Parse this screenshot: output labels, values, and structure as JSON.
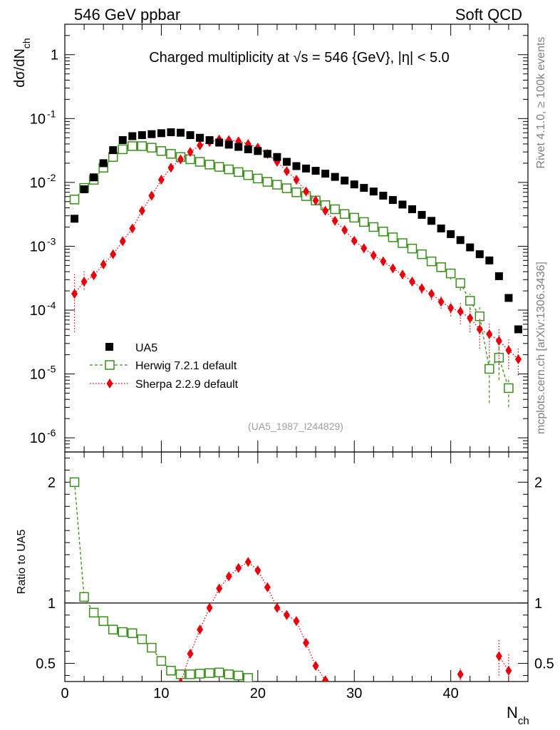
{
  "header": {
    "left": "546 GeV ppbar",
    "right": "Soft QCD"
  },
  "side": {
    "rivet": "Rivet 4.1.0, ≥ 100k events",
    "mcplots": "mcplots.cern.ch [arXiv:1306.3436]"
  },
  "colors": {
    "ua5": "#000000",
    "herwig": "#3a8f1a",
    "sherpa": "#e8000b"
  },
  "chart_data": [
    {
      "type": "scatter",
      "panel": "main",
      "title": "Charged multiplicity at √s = 546 {GeV}, |η| < 5.0",
      "analysis_label": "(UA5_1987_I244829)",
      "xlabel": "N_ch",
      "ylabel": "dσ/dN_ch",
      "yscale": "log",
      "xlim": [
        0,
        48
      ],
      "ylim": [
        6e-07,
        3
      ],
      "y_ticks": [
        {
          "exp": "0",
          "base": "1",
          "v": 1
        },
        {
          "exp": "-1",
          "base": "10",
          "v": 0.1
        },
        {
          "exp": "-2",
          "base": "10",
          "v": 0.01
        },
        {
          "exp": "-3",
          "base": "10",
          "v": 0.001
        },
        {
          "exp": "-4",
          "base": "10",
          "v": 0.0001
        },
        {
          "exp": "-5",
          "base": "10",
          "v": 1e-05
        },
        {
          "exp": "-6",
          "base": "10",
          "v": 1e-06
        }
      ],
      "legend": [
        "UA5",
        "Herwig 7.2.1 default",
        "Sherpa 2.2.9 default"
      ],
      "series": [
        {
          "name": "UA5",
          "style": "filled-square",
          "x": [
            1,
            2,
            3,
            4,
            5,
            6,
            7,
            8,
            9,
            10,
            11,
            12,
            13,
            14,
            15,
            16,
            17,
            18,
            19,
            20,
            21,
            22,
            23,
            24,
            25,
            26,
            27,
            28,
            29,
            30,
            31,
            32,
            33,
            34,
            35,
            36,
            37,
            38,
            39,
            40,
            41,
            42,
            43,
            44,
            45,
            46,
            47
          ],
          "y": [
            0.0027,
            0.0078,
            0.012,
            0.02,
            0.032,
            0.046,
            0.053,
            0.055,
            0.057,
            0.059,
            0.061,
            0.06,
            0.055,
            0.05,
            0.046,
            0.042,
            0.039,
            0.036,
            0.033,
            0.031,
            0.028,
            0.025,
            0.021,
            0.018,
            0.0165,
            0.0152,
            0.0137,
            0.0122,
            0.0107,
            0.0093,
            0.0082,
            0.0072,
            0.0062,
            0.0053,
            0.0045,
            0.0038,
            0.0031,
            0.0025,
            0.0019,
            0.00155,
            0.00125,
            0.00096,
            0.00075,
            0.0006,
            0.00034,
            0.000155,
            5e-05
          ]
        },
        {
          "name": "Herwig 7.2.1 default",
          "style": "open-square-dashed",
          "x": [
            1,
            2,
            3,
            4,
            5,
            6,
            7,
            8,
            9,
            10,
            11,
            12,
            13,
            14,
            15,
            16,
            17,
            18,
            19,
            20,
            21,
            22,
            23,
            24,
            25,
            26,
            27,
            28,
            29,
            30,
            31,
            32,
            33,
            34,
            35,
            36,
            37,
            38,
            39,
            40,
            41,
            42,
            43,
            44,
            45,
            46
          ],
          "y": [
            0.0054,
            0.0082,
            0.011,
            0.017,
            0.025,
            0.033,
            0.037,
            0.037,
            0.035,
            0.031,
            0.028,
            0.025,
            0.023,
            0.021,
            0.019,
            0.0175,
            0.016,
            0.0145,
            0.013,
            0.0115,
            0.0102,
            0.0092,
            0.0081,
            0.007,
            0.0061,
            0.0052,
            0.0044,
            0.0038,
            0.0032,
            0.0028,
            0.0024,
            0.002,
            0.0017,
            0.00138,
            0.00112,
            0.00092,
            0.00075,
            0.00058,
            0.00047,
            0.000375,
            0.000265,
            0.00014,
            8e-05,
            1.2e-05,
            1.8e-05,
            6e-06
          ],
          "ylo": [
            0.0052,
            0.0079,
            0.0106,
            0.0165,
            0.0245,
            0.0325,
            0.0365,
            0.0365,
            0.0345,
            0.0305,
            0.0275,
            0.0245,
            0.0225,
            0.0205,
            0.0186,
            0.0171,
            0.0156,
            0.0141,
            0.0127,
            0.0112,
            0.0099,
            0.0089,
            0.0078,
            0.0068,
            0.0059,
            0.005,
            0.0042,
            0.0036,
            0.003,
            0.0026,
            0.0022,
            0.0018,
            0.0015,
            0.0012,
            0.00098,
            0.0008,
            0.00064,
            0.00049,
            0.00039,
            0.0003,
            0.0002,
            0.0001,
            5e-05,
            3.5e-06,
            8e-06,
            3e-06
          ],
          "yhi": [
            0.0056,
            0.0085,
            0.0114,
            0.0175,
            0.0255,
            0.0335,
            0.0375,
            0.0375,
            0.0355,
            0.0315,
            0.0285,
            0.0255,
            0.0235,
            0.0215,
            0.0194,
            0.0179,
            0.0164,
            0.0149,
            0.0133,
            0.0118,
            0.0105,
            0.0095,
            0.0084,
            0.0072,
            0.0063,
            0.0054,
            0.0046,
            0.004,
            0.0034,
            0.003,
            0.0026,
            0.0022,
            0.0019,
            0.00156,
            0.00126,
            0.00104,
            0.00086,
            0.00067,
            0.00055,
            0.00045,
            0.00033,
            0.00018,
            0.00011,
            2e-05,
            2.8e-05,
            9e-06
          ]
        },
        {
          "name": "Sherpa 2.2.9 default",
          "style": "diamond-dotted",
          "x": [
            1,
            2,
            3,
            4,
            5,
            6,
            7,
            8,
            9,
            10,
            11,
            12,
            13,
            14,
            15,
            16,
            17,
            18,
            19,
            20,
            21,
            22,
            23,
            24,
            25,
            26,
            27,
            28,
            29,
            30,
            31,
            32,
            33,
            34,
            35,
            36,
            37,
            38,
            39,
            40,
            41,
            42,
            43,
            44,
            45,
            46,
            47
          ],
          "y": [
            0.00018,
            0.00028,
            0.00035,
            0.00052,
            0.00075,
            0.0012,
            0.0019,
            0.0036,
            0.0062,
            0.011,
            0.017,
            0.023,
            0.03,
            0.038,
            0.043,
            0.047,
            0.046,
            0.044,
            0.04,
            0.035,
            0.028,
            0.021,
            0.015,
            0.011,
            0.0072,
            0.0052,
            0.0036,
            0.0025,
            0.0018,
            0.00122,
            0.00093,
            0.00072,
            0.00058,
            0.00045,
            0.00036,
            0.00028,
            0.00022,
            0.00018,
            0.000135,
            0.000108,
            9.5e-05,
            7.5e-05,
            5e-05,
            4.2e-05,
            3.3e-05,
            2.35e-05,
            1.7e-05
          ],
          "ylo": [
            4.5e-05,
            0.00021,
            0.0003,
            0.00047,
            0.0007,
            0.00114,
            0.0018,
            0.0035,
            0.0061,
            0.0108,
            0.0168,
            0.0228,
            0.0298,
            0.0378,
            0.0428,
            0.0468,
            0.0458,
            0.0438,
            0.0398,
            0.0348,
            0.0278,
            0.0208,
            0.0148,
            0.0108,
            0.0071,
            0.0051,
            0.0035,
            0.0024,
            0.00172,
            0.00115,
            0.00086,
            0.00066,
            0.00052,
            0.0004,
            0.00031,
            0.00024,
            0.00018,
            0.000145,
            0.000105,
            8e-05,
            6e-05,
            4.5e-05,
            2.5e-05,
            1.9e-05,
            1.4e-05,
            1.2e-05,
            9.5e-06
          ],
          "yhi": [
            0.00038,
            0.00042,
            0.0004,
            0.00057,
            0.0008,
            0.00126,
            0.002,
            0.0037,
            0.0063,
            0.0112,
            0.0172,
            0.0232,
            0.0302,
            0.0382,
            0.0432,
            0.0472,
            0.0462,
            0.0442,
            0.0402,
            0.0352,
            0.0282,
            0.0212,
            0.0152,
            0.0112,
            0.0073,
            0.0053,
            0.0037,
            0.0026,
            0.00188,
            0.00129,
            0.001,
            0.00078,
            0.00064,
            0.0005,
            0.00041,
            0.00032,
            0.00026,
            0.000215,
            0.000165,
            0.000136,
            0.00013,
            0.000105,
            7.5e-05,
            6.5e-05,
            5.2e-05,
            3.5e-05,
            2.5e-05
          ]
        }
      ]
    },
    {
      "type": "scatter",
      "panel": "ratio",
      "xlabel": "N_ch",
      "ylabel": "Ratio to UA5",
      "xlim": [
        0,
        48
      ],
      "ylim": [
        0.35,
        2.25
      ],
      "x_ticks": [
        0,
        10,
        20,
        30,
        40
      ],
      "y_ticks": [
        0.5,
        1,
        2
      ],
      "reference": 1,
      "series": [
        {
          "name": "Herwig 7.2.1 default",
          "x": [
            1,
            2,
            3,
            4,
            5,
            6,
            7,
            8,
            9,
            10,
            11,
            12,
            13,
            14,
            15,
            16,
            17,
            18,
            19
          ],
          "y": [
            2.0,
            1.05,
            0.92,
            0.85,
            0.78,
            0.76,
            0.75,
            0.7,
            0.63,
            0.52,
            0.44,
            0.41,
            0.41,
            0.415,
            0.42,
            0.425,
            0.41,
            0.4,
            0.38
          ]
        },
        {
          "name": "Sherpa 2.2.9 default",
          "x": [
            12,
            13,
            14,
            15,
            16,
            17,
            18,
            19,
            20,
            21,
            22,
            23,
            24,
            25,
            26,
            27,
            41,
            45,
            46
          ],
          "y": [
            0.34,
            0.58,
            0.78,
            0.96,
            1.12,
            1.22,
            1.29,
            1.34,
            1.27,
            1.13,
            0.96,
            0.9,
            0.85,
            0.67,
            0.48,
            0.36,
            0.41,
            0.56,
            0.44
          ],
          "ylo": [
            0.34,
            0.575,
            0.775,
            0.955,
            1.115,
            1.215,
            1.285,
            1.335,
            1.265,
            1.125,
            0.955,
            0.895,
            0.845,
            0.665,
            0.475,
            0.355,
            0.36,
            0.4,
            0.33
          ],
          "yhi": [
            0.34,
            0.585,
            0.785,
            0.965,
            1.125,
            1.225,
            1.295,
            1.345,
            1.275,
            1.135,
            0.965,
            0.905,
            0.855,
            0.675,
            0.485,
            0.365,
            0.46,
            0.7,
            0.58
          ]
        }
      ]
    }
  ]
}
